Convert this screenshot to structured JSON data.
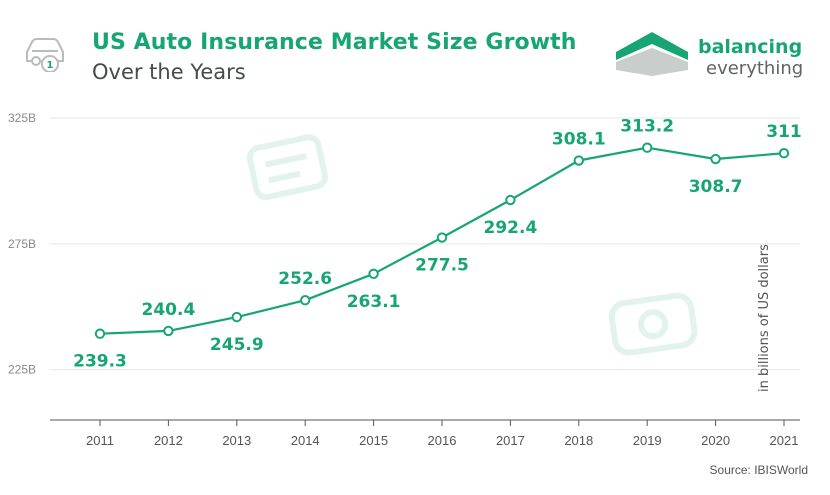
{
  "header": {
    "title": "US Auto Insurance Market Size Growth",
    "subtitle": "Over the Years",
    "icon": "car-icon",
    "badge": "1"
  },
  "brand": {
    "line1": "balancing",
    "line2": "everything",
    "icon": "balancing-everything-logo"
  },
  "colors": {
    "accent": "#17a673",
    "text_dark": "#444c4a",
    "grid": "#e6e6e6"
  },
  "chart_data": {
    "type": "line",
    "x": [
      "2011",
      "2012",
      "2013",
      "2014",
      "2015",
      "2016",
      "2017",
      "2018",
      "2019",
      "2020",
      "2021"
    ],
    "series": [
      {
        "values": [
          239.3,
          240.4,
          245.9,
          252.6,
          263.1,
          277.5,
          292.4,
          308.1,
          313.2,
          308.7,
          311
        ]
      }
    ],
    "data_labels": [
      "239.3",
      "240.4",
      "245.9",
      "252.6",
      "263.1",
      "277.5",
      "292.4",
      "308.1",
      "313.2",
      "308.7",
      "311"
    ],
    "label_position": [
      "below",
      "above",
      "below",
      "above",
      "below",
      "below",
      "below",
      "above",
      "above",
      "below",
      "above"
    ],
    "y_ticks": [
      {
        "value": 325,
        "label": "325B"
      },
      {
        "value": 275,
        "label": "275B"
      },
      {
        "value": 225,
        "label": "225B"
      }
    ],
    "ylim": [
      205,
      325
    ],
    "ylabel": "in billions of US dollars",
    "grid": true,
    "marker": "hollow-circle"
  },
  "footer": {
    "source": "Source: IBISWorld"
  }
}
